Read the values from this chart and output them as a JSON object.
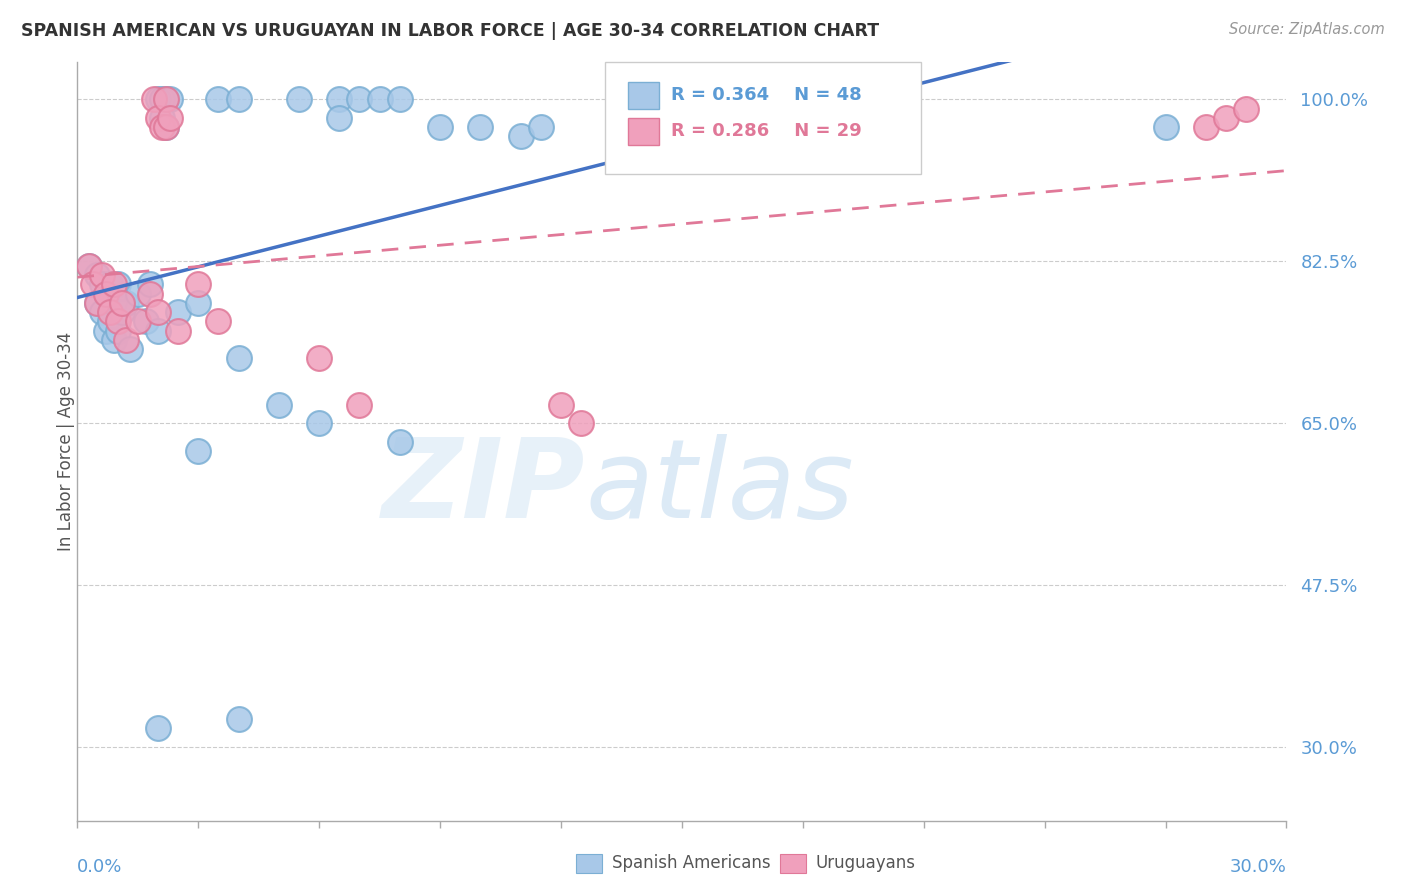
{
  "title": "SPANISH AMERICAN VS URUGUAYAN IN LABOR FORCE | AGE 30-34 CORRELATION CHART",
  "source": "Source: ZipAtlas.com",
  "ylabel": "In Labor Force | Age 30-34",
  "ytick_vals": [
    0.3,
    0.475,
    0.65,
    0.825,
    1.0
  ],
  "ytick_labels": [
    "30.0%",
    "47.5%",
    "65.0%",
    "82.5%",
    "100.0%"
  ],
  "xmin": 0.0,
  "xmax": 0.3,
  "ymin": 0.22,
  "ymax": 1.04,
  "color_blue": "#A8C8E8",
  "color_blue_edge": "#7BAFD4",
  "color_pink": "#F0A0BC",
  "color_pink_edge": "#E07898",
  "color_blue_line": "#4472C4",
  "color_pink_line": "#E07898",
  "color_axis": "#AAAAAA",
  "color_ytick": "#5B9BD5",
  "color_grid": "#CCCCCC",
  "sx": [
    0.02,
    0.021,
    0.022,
    0.023,
    0.021,
    0.022,
    0.035,
    0.04,
    0.055,
    0.065,
    0.065,
    0.07,
    0.075,
    0.08,
    0.09,
    0.1,
    0.11,
    0.115,
    0.003,
    0.005,
    0.005,
    0.006,
    0.006,
    0.007,
    0.007,
    0.008,
    0.008,
    0.009,
    0.009,
    0.01,
    0.01,
    0.011,
    0.012,
    0.013,
    0.015,
    0.017,
    0.018,
    0.02,
    0.025,
    0.03,
    0.04,
    0.05,
    0.06,
    0.03,
    0.08,
    0.02,
    0.04,
    0.27
  ],
  "sy": [
    1.0,
    1.0,
    1.0,
    1.0,
    0.98,
    0.97,
    1.0,
    1.0,
    1.0,
    1.0,
    0.98,
    1.0,
    1.0,
    1.0,
    0.97,
    0.97,
    0.96,
    0.97,
    0.82,
    0.81,
    0.78,
    0.8,
    0.77,
    0.79,
    0.75,
    0.8,
    0.76,
    0.78,
    0.74,
    0.8,
    0.75,
    0.77,
    0.78,
    0.73,
    0.79,
    0.76,
    0.8,
    0.75,
    0.77,
    0.78,
    0.72,
    0.67,
    0.65,
    0.62,
    0.63,
    0.32,
    0.33,
    0.97
  ],
  "ux": [
    0.019,
    0.02,
    0.021,
    0.022,
    0.022,
    0.023,
    0.003,
    0.004,
    0.005,
    0.006,
    0.007,
    0.008,
    0.009,
    0.01,
    0.011,
    0.012,
    0.015,
    0.018,
    0.02,
    0.025,
    0.03,
    0.035,
    0.06,
    0.07,
    0.12,
    0.125,
    0.28,
    0.285,
    0.29
  ],
  "uy": [
    1.0,
    0.98,
    0.97,
    1.0,
    0.97,
    0.98,
    0.82,
    0.8,
    0.78,
    0.81,
    0.79,
    0.77,
    0.8,
    0.76,
    0.78,
    0.74,
    0.76,
    0.79,
    0.77,
    0.75,
    0.8,
    0.76,
    0.72,
    0.67,
    0.67,
    0.65,
    0.97,
    0.98,
    0.99
  ]
}
